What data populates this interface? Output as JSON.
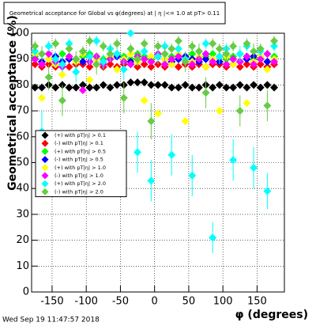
{
  "chart_data": {
    "type": "scatter",
    "title": "Geometrical acceptance for Global vs φ(degrees) at | η |<= 1.0 at pT> 0.11",
    "x_label": "φ (degrees)",
    "y_label": "Geometrical acceptance (%)",
    "xlim": [
      -180,
      190
    ],
    "ylim": [
      0,
      100
    ],
    "xticks": [
      -150,
      -100,
      -50,
      0,
      50,
      100,
      150
    ],
    "yticks": [
      0,
      10,
      20,
      30,
      40,
      50,
      60,
      70,
      80,
      90,
      100
    ],
    "grid": true,
    "legend": "left",
    "x": [
      -175,
      -165,
      -155,
      -145,
      -135,
      -125,
      -115,
      -105,
      -95,
      -85,
      -75,
      -65,
      -55,
      -45,
      -35,
      -25,
      -15,
      -5,
      5,
      15,
      25,
      35,
      45,
      55,
      65,
      75,
      85,
      95,
      105,
      115,
      125,
      135,
      145,
      155,
      165,
      175
    ],
    "series": [
      {
        "name": "(+) with pT|η| > 0.1",
        "color": "#000000",
        "values": [
          79,
          79,
          80,
          79,
          80,
          79,
          79,
          80,
          79,
          79,
          80,
          79,
          80,
          80,
          81,
          81,
          81,
          80,
          80,
          80,
          79,
          79,
          80,
          79,
          79,
          80,
          79,
          80,
          79,
          79,
          80,
          79,
          80,
          79,
          80,
          79
        ]
      },
      {
        "name": "(-) with pT|η| > 0.1",
        "color": "#ff0000",
        "values": [
          88,
          87,
          88,
          87,
          88,
          87,
          88,
          88,
          87,
          88,
          87,
          88,
          87,
          88,
          88,
          87,
          88,
          87,
          88,
          87,
          88,
          87,
          88,
          87,
          88,
          87,
          88,
          88,
          87,
          88,
          87,
          88,
          87,
          88,
          87,
          88
        ]
      },
      {
        "name": "(+) with pT|η| > 0.5",
        "color": "#00ff00",
        "values": [
          91,
          92,
          90,
          91,
          92,
          91,
          90,
          91,
          92,
          91,
          90,
          91,
          92,
          91,
          90,
          92,
          91,
          90,
          91,
          92,
          91,
          90,
          91,
          92,
          90,
          91,
          92,
          91,
          90,
          91,
          92,
          91,
          90,
          91,
          92,
          91
        ]
      },
      {
        "name": "(-) with pT|η| > 0.5",
        "color": "#0000ff",
        "values": [
          90,
          89,
          90,
          91,
          89,
          90,
          90,
          89,
          91,
          90,
          89,
          90,
          91,
          90,
          89,
          90,
          90,
          89,
          91,
          90,
          89,
          90,
          91,
          90,
          89,
          90,
          90,
          89,
          91,
          90,
          89,
          90,
          91,
          90,
          89,
          90
        ]
      },
      {
        "name": "(+) with pT|η| > 1.0",
        "color": "#ffff00",
        "values": [
          92,
          75,
          90,
          88,
          84,
          91,
          89,
          92,
          82,
          90,
          88,
          91,
          86,
          90,
          92,
          89,
          74,
          91,
          69,
          90,
          88,
          92,
          66,
          89,
          91,
          87,
          90,
          70,
          91,
          88,
          92,
          73,
          89,
          91,
          86,
          90
        ]
      },
      {
        "name": "(-) with pT|η| > 1.0",
        "color": "#ff00ff",
        "values": [
          90,
          88,
          92,
          89,
          87,
          91,
          90,
          78,
          89,
          91,
          88,
          90,
          92,
          89,
          88,
          91,
          90,
          89,
          92,
          88,
          90,
          91,
          89,
          88,
          90,
          92,
          89,
          91,
          88,
          90,
          89,
          91,
          88,
          90,
          92,
          89
        ]
      },
      {
        "name": "(+) with pT|η| > 2.0",
        "color": "#00ffff",
        "values": [
          93,
          62,
          95,
          90,
          88,
          96,
          85,
          93,
          91,
          97,
          89,
          94,
          92,
          86,
          100,
          54,
          93,
          43,
          91,
          95,
          53,
          94,
          90,
          45,
          93,
          96,
          21,
          91,
          94,
          51,
          92,
          95,
          48,
          93,
          39,
          95
        ],
        "errors": [
          2,
          8,
          2,
          3,
          3,
          2,
          4,
          2,
          3,
          2,
          3,
          2,
          2,
          4,
          1,
          8,
          2,
          8,
          3,
          2,
          8,
          2,
          3,
          8,
          2,
          2,
          6,
          3,
          2,
          8,
          3,
          2,
          8,
          2,
          7,
          2
        ]
      },
      {
        "name": "(-) with pT|η| > 2.0",
        "color": "#66cc44",
        "values": [
          95,
          92,
          83,
          96,
          74,
          94,
          90,
          93,
          97,
          88,
          95,
          92,
          96,
          75,
          94,
          90,
          96,
          66,
          95,
          92,
          94,
          97,
          89,
          95,
          93,
          77,
          96,
          94,
          92,
          95,
          70,
          96,
          93,
          94,
          72,
          97
        ],
        "errors": [
          2,
          3,
          5,
          2,
          6,
          2,
          3,
          2,
          2,
          4,
          2,
          3,
          2,
          6,
          2,
          3,
          2,
          7,
          2,
          3,
          2,
          2,
          4,
          2,
          3,
          6,
          2,
          2,
          3,
          2,
          6,
          2,
          3,
          2,
          6,
          2
        ]
      }
    ]
  },
  "footer": "Wed Sep 19 11:47:57 2018"
}
